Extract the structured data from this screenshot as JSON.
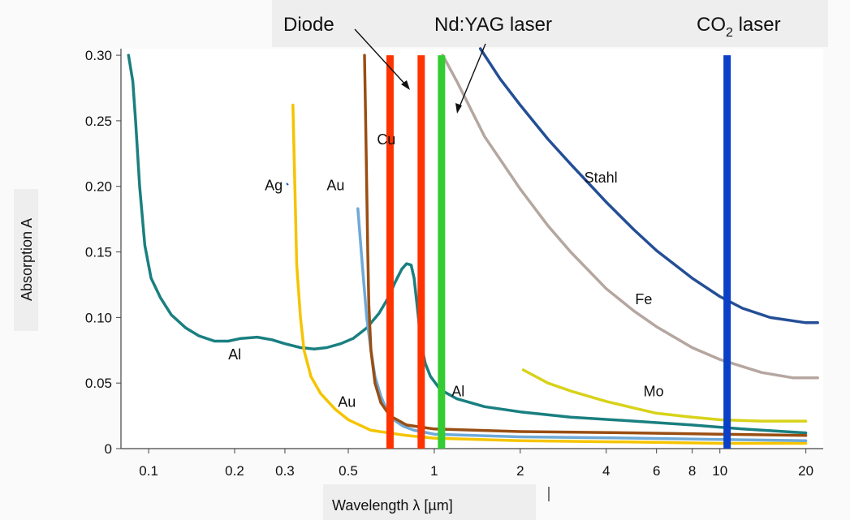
{
  "chart_data": {
    "type": "line",
    "xlabel": "Wavelength λ [µm]",
    "ylabel": "Absorption A",
    "x_scale": "log",
    "xlim": [
      0.08,
      23
    ],
    "ylim": [
      0,
      0.305
    ],
    "x_ticks": [
      {
        "value": 0.1,
        "label": "0.1"
      },
      {
        "value": 0.2,
        "label": "0.2"
      },
      {
        "value": 0.3,
        "label": "0.3"
      },
      {
        "value": 0.5,
        "label": "0.5"
      },
      {
        "value": 1,
        "label": "1"
      },
      {
        "value": 2,
        "label": "2"
      },
      {
        "value": 4,
        "label": "4"
      },
      {
        "value": 6,
        "label": "6"
      },
      {
        "value": 8,
        "label": "8"
      },
      {
        "value": 10,
        "label": "10"
      },
      {
        "value": 20,
        "label": "20"
      }
    ],
    "y_ticks": [
      {
        "value": 0,
        "label": "0"
      },
      {
        "value": 0.05,
        "label": "0.05"
      },
      {
        "value": 0.1,
        "label": "0.10"
      },
      {
        "value": 0.15,
        "label": "0.15"
      },
      {
        "value": 0.2,
        "label": "0.20"
      },
      {
        "value": 0.25,
        "label": "0.25"
      },
      {
        "value": 0.3,
        "label": "0.30"
      }
    ],
    "series": [
      {
        "id": "al",
        "color": "#1a7f80",
        "label": "Al",
        "x": [
          0.085,
          0.088,
          0.09,
          0.093,
          0.097,
          0.102,
          0.11,
          0.12,
          0.135,
          0.15,
          0.17,
          0.19,
          0.21,
          0.24,
          0.27,
          0.3,
          0.34,
          0.38,
          0.42,
          0.47,
          0.52,
          0.58,
          0.64,
          0.69,
          0.73,
          0.77,
          0.8,
          0.83,
          0.85,
          0.87,
          0.9,
          0.93,
          0.97,
          1.05,
          1.2,
          1.5,
          2,
          3,
          5,
          8,
          12,
          20
        ],
        "y": [
          0.3,
          0.28,
          0.25,
          0.2,
          0.155,
          0.13,
          0.115,
          0.102,
          0.092,
          0.086,
          0.082,
          0.082,
          0.084,
          0.085,
          0.083,
          0.08,
          0.077,
          0.076,
          0.077,
          0.08,
          0.084,
          0.092,
          0.103,
          0.115,
          0.127,
          0.137,
          0.141,
          0.14,
          0.13,
          0.11,
          0.08,
          0.065,
          0.055,
          0.045,
          0.038,
          0.032,
          0.028,
          0.024,
          0.021,
          0.018,
          0.015,
          0.012
        ]
      },
      {
        "id": "ag",
        "color": "#f5c400",
        "label": "Ag",
        "x": [
          0.32,
          0.325,
          0.33,
          0.34,
          0.35,
          0.37,
          0.4,
          0.45,
          0.5,
          0.6,
          0.8,
          1,
          2,
          5,
          10,
          20
        ],
        "y": [
          0.262,
          0.2,
          0.14,
          0.1,
          0.075,
          0.055,
          0.042,
          0.03,
          0.022,
          0.014,
          0.01,
          0.008,
          0.006,
          0.005,
          0.004,
          0.004
        ]
      },
      {
        "id": "au",
        "color": "#6ea9d8",
        "label": "Au",
        "x": [
          0.54,
          0.56,
          0.58,
          0.6,
          0.62,
          0.65,
          0.68,
          0.72,
          0.78,
          0.85,
          1,
          2,
          5,
          10,
          20
        ],
        "y": [
          0.183,
          0.14,
          0.1,
          0.075,
          0.055,
          0.04,
          0.03,
          0.022,
          0.017,
          0.014,
          0.011,
          0.009,
          0.008,
          0.007,
          0.006
        ]
      },
      {
        "id": "cu",
        "color": "#9a4e12",
        "label": "Cu",
        "x": [
          0.57,
          0.575,
          0.58,
          0.585,
          0.59,
          0.6,
          0.62,
          0.65,
          0.7,
          0.8,
          1,
          2,
          5,
          10,
          20
        ],
        "y": [
          0.3,
          0.25,
          0.2,
          0.15,
          0.11,
          0.075,
          0.05,
          0.035,
          0.025,
          0.018,
          0.015,
          0.013,
          0.012,
          0.011,
          0.01
        ]
      },
      {
        "id": "stahl",
        "color": "#244f96",
        "label": "Stahl",
        "x": [
          1.45,
          1.7,
          2,
          2.5,
          3,
          4,
          5,
          6,
          8,
          10,
          12,
          15,
          20,
          22
        ],
        "y": [
          0.305,
          0.282,
          0.262,
          0.236,
          0.217,
          0.188,
          0.167,
          0.151,
          0.13,
          0.116,
          0.107,
          0.1,
          0.096,
          0.096
        ]
      },
      {
        "id": "fe",
        "color": "#b5a6a0",
        "label": "Fe",
        "x": [
          1.07,
          1.2,
          1.5,
          2,
          2.5,
          3,
          4,
          5,
          6,
          8,
          10,
          14,
          18,
          22
        ],
        "y": [
          0.3,
          0.28,
          0.238,
          0.198,
          0.17,
          0.15,
          0.122,
          0.105,
          0.093,
          0.077,
          0.068,
          0.058,
          0.054,
          0.054
        ]
      },
      {
        "id": "mo",
        "color": "#d8d21a",
        "label": "Mo",
        "x": [
          2.05,
          2.5,
          3,
          4,
          5,
          6,
          8,
          10,
          14,
          20
        ],
        "y": [
          0.06,
          0.05,
          0.044,
          0.036,
          0.031,
          0.027,
          0.024,
          0.022,
          0.021,
          0.021
        ]
      }
    ],
    "lasers": [
      {
        "id": "diode-1",
        "x": 0.7,
        "color": "#ff3300"
      },
      {
        "id": "diode-2",
        "x": 0.9,
        "color": "#ff3300"
      },
      {
        "id": "ndyag",
        "x": 1.06,
        "color": "#33cc33"
      },
      {
        "id": "co2",
        "x": 10.6,
        "color": "#0a3fc8"
      }
    ],
    "curve_labels": [
      {
        "text": "Al",
        "x": 0.19,
        "y": 0.068
      },
      {
        "text": "Al",
        "x": 1.15,
        "y": 0.04
      },
      {
        "text": "Ag",
        "x": 0.255,
        "y": 0.197
      },
      {
        "text": "Au",
        "x": 0.42,
        "y": 0.197
      },
      {
        "text": "Au",
        "x": 0.46,
        "y": 0.032
      },
      {
        "text": "Cu",
        "x": 0.63,
        "y": 0.232
      },
      {
        "text": "Stahl",
        "x": 3.35,
        "y": 0.203
      },
      {
        "text": "Fe",
        "x": 5.05,
        "y": 0.11
      },
      {
        "text": "Mo",
        "x": 5.4,
        "y": 0.04
      }
    ],
    "laser_labels": [
      {
        "id": "diode",
        "text": "Diode"
      },
      {
        "id": "ndyag",
        "text": "Nd:YAG laser"
      },
      {
        "id": "co2-main",
        "text": "CO"
      },
      {
        "id": "co2-sub",
        "text": "2"
      },
      {
        "id": "co2-rest",
        "text": " laser"
      }
    ]
  }
}
